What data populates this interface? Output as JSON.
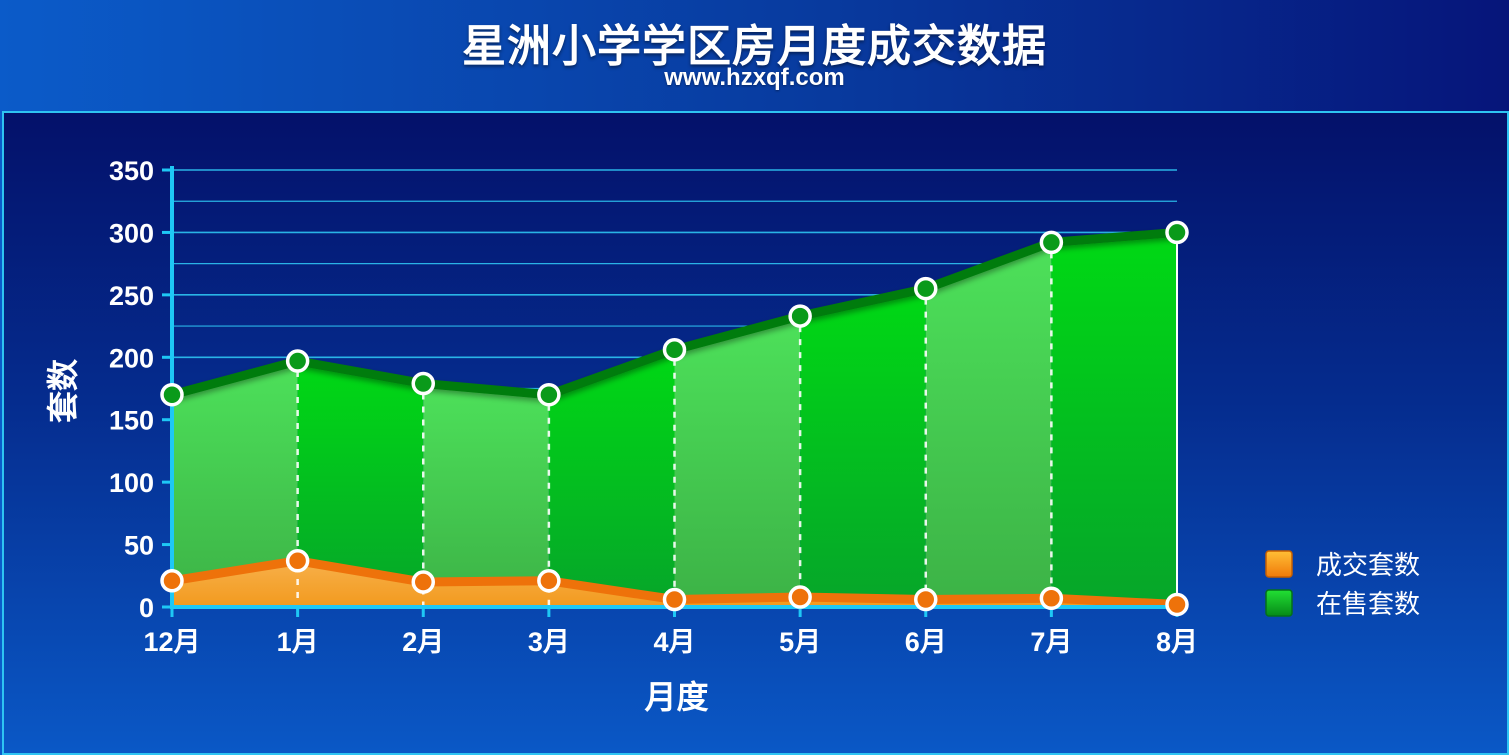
{
  "header": {
    "title": "星洲小学学区房月度成交数据",
    "subtitle": "www.hzxqf.com"
  },
  "chart_data": {
    "type": "area",
    "title": "星洲小学学区房月度成交数据",
    "subtitle": "www.hzxqf.com",
    "xlabel": "月度",
    "ylabel": "套数",
    "categories": [
      "12月",
      "1月",
      "2月",
      "3月",
      "4月",
      "5月",
      "6月",
      "7月",
      "8月"
    ],
    "ylim": [
      0,
      350
    ],
    "yticks": [
      "0",
      "50",
      "100",
      "150",
      "200",
      "250",
      "300",
      "350"
    ],
    "grid": true,
    "legend_position": "right",
    "series": [
      {
        "name": "成交套数",
        "values": [
          21,
          37,
          20,
          21,
          6,
          8,
          6,
          7,
          2
        ],
        "color": "#f07d0c"
      },
      {
        "name": "在售套数",
        "values": [
          170,
          197,
          179,
          170,
          206,
          233,
          255,
          292,
          300
        ],
        "color": "#0aa51e"
      }
    ]
  }
}
